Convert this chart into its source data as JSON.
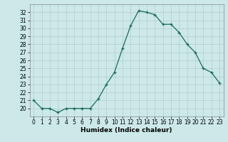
{
  "x": [
    0,
    1,
    2,
    3,
    4,
    5,
    6,
    7,
    8,
    9,
    10,
    11,
    12,
    13,
    14,
    15,
    16,
    17,
    18,
    19,
    20,
    21,
    22,
    23
  ],
  "y": [
    21,
    20,
    20,
    19.5,
    20,
    20,
    20,
    20,
    21.2,
    23,
    24.5,
    27.5,
    30.3,
    32.2,
    32,
    31.7,
    30.5,
    30.5,
    29.5,
    28,
    27,
    25,
    24.5,
    23.2
  ],
  "xlabel": "Humidex (Indice chaleur)",
  "ylim": [
    19,
    33
  ],
  "xlim": [
    -0.5,
    23.5
  ],
  "yticks": [
    20,
    21,
    22,
    23,
    24,
    25,
    26,
    27,
    28,
    29,
    30,
    31,
    32
  ],
  "xticks": [
    0,
    1,
    2,
    3,
    4,
    5,
    6,
    7,
    8,
    9,
    10,
    11,
    12,
    13,
    14,
    15,
    16,
    17,
    18,
    19,
    20,
    21,
    22,
    23
  ],
  "xtick_labels": [
    "0",
    "1",
    "2",
    "3",
    "4",
    "5",
    "6",
    "7",
    "8",
    "9",
    "10",
    "11",
    "12",
    "13",
    "14",
    "15",
    "16",
    "17",
    "18",
    "19",
    "20",
    "21",
    "22",
    "23"
  ],
  "line_color": "#1a6b5a",
  "marker": "+",
  "bg_color": "#cce8e8",
  "grid_color": "#b0cccc",
  "xlabel_fontsize": 6.5,
  "tick_fontsize": 5.5
}
